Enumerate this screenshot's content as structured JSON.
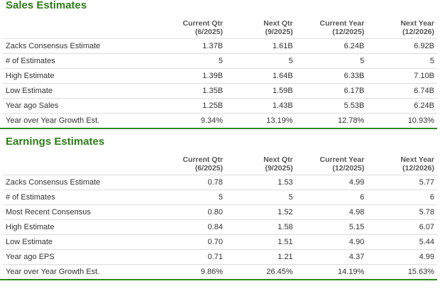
{
  "sections": [
    {
      "title": "Sales Estimates",
      "columns": [
        {
          "name": "Current Qtr",
          "period": "(6/2025)"
        },
        {
          "name": "Next Qtr",
          "period": "(9/2025)"
        },
        {
          "name": "Current Year",
          "period": "(12/2025)"
        },
        {
          "name": "Next Year",
          "period": "(12/2026)"
        }
      ],
      "rows": [
        [
          "Zacks Consensus Estimate",
          "1.37B",
          "1.61B",
          "6.24B",
          "6.92B"
        ],
        [
          "# of Estimates",
          "5",
          "5",
          "5",
          "5"
        ],
        [
          "High Estimate",
          "1.39B",
          "1.64B",
          "6.33B",
          "7.10B"
        ],
        [
          "Low Estimate",
          "1.35B",
          "1.59B",
          "6.17B",
          "6.74B"
        ],
        [
          "Year ago Sales",
          "1.25B",
          "1.43B",
          "5.53B",
          "6.24B"
        ],
        [
          "Year over Year Growth Est.",
          "9.34%",
          "13.19%",
          "12.78%",
          "10.93%"
        ]
      ]
    },
    {
      "title": "Earnings Estimates",
      "columns": [
        {
          "name": "Current Qtr",
          "period": "(6/2025)"
        },
        {
          "name": "Next Qtr",
          "period": "(9/2025)"
        },
        {
          "name": "Current Year",
          "period": "(12/2025)"
        },
        {
          "name": "Next Year",
          "period": "(12/2026)"
        }
      ],
      "rows": [
        [
          "Zacks Consensus Estimate",
          "0.78",
          "1.53",
          "4.99",
          "5.77"
        ],
        [
          "# of Estimates",
          "5",
          "5",
          "6",
          "6"
        ],
        [
          "Most Recent Consensus",
          "0.80",
          "1.52",
          "4.98",
          "5.78"
        ],
        [
          "High Estimate",
          "0.84",
          "1.58",
          "5.15",
          "6.07"
        ],
        [
          "Low Estimate",
          "0.70",
          "1.51",
          "4.90",
          "5.44"
        ],
        [
          "Year ago EPS",
          "0.71",
          "1.21",
          "4.37",
          "4.99"
        ],
        [
          "Year over Year Growth Est.",
          "9.86%",
          "26.45%",
          "14.19%",
          "15.63%"
        ]
      ]
    }
  ]
}
